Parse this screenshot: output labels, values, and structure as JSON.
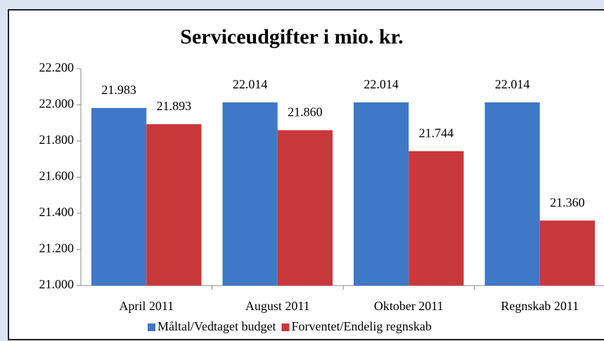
{
  "chart_data": {
    "type": "bar",
    "title": "Serviceudgifter i mio. kr.",
    "categories": [
      "April 2011",
      "August 2011",
      "Oktober 2011",
      "Regnskab 2011"
    ],
    "series": [
      {
        "name": "Måltal/Vedtaget budget",
        "color": "#3f78c6",
        "values": [
          21983,
          22014,
          22014,
          22014
        ],
        "value_labels": [
          "21.983",
          "22.014",
          "22.014",
          "22.014"
        ]
      },
      {
        "name": "Forventet/Endelig regnskab",
        "color": "#c9383a",
        "values": [
          21893,
          21860,
          21744,
          21360
        ],
        "value_labels": [
          "21.893",
          "21.860",
          "21.744",
          "21.360"
        ]
      }
    ],
    "ylim": [
      21000,
      22200
    ],
    "yticks": [
      {
        "value": 21000,
        "label": "21.000"
      },
      {
        "value": 21200,
        "label": "21.200"
      },
      {
        "value": 21400,
        "label": "21.400"
      },
      {
        "value": 21600,
        "label": "21.600"
      },
      {
        "value": 21800,
        "label": "21.800"
      },
      {
        "value": 22000,
        "label": "22.000"
      },
      {
        "value": 22200,
        "label": "22.200"
      }
    ],
    "grid": false,
    "legend": "bottom"
  }
}
